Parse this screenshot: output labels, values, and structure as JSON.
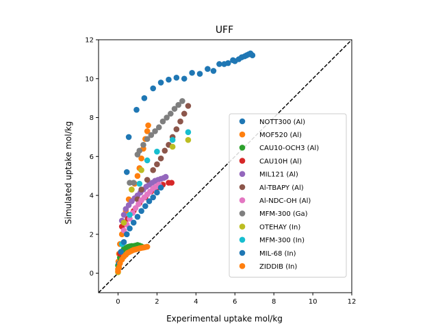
{
  "chart_data": {
    "type": "scatter",
    "title": "UFF",
    "xlabel": "Experimental uptake mol/kg",
    "ylabel": "Simulated uptake mol/kg",
    "xlim": [
      -1,
      12
    ],
    "ylim": [
      -1,
      12
    ],
    "xticks": [
      "0",
      "2",
      "4",
      "6",
      "8",
      "10",
      "12"
    ],
    "yticks": [
      "0",
      "2",
      "4",
      "6",
      "8",
      "10",
      "12"
    ],
    "xtick_values": [
      0,
      2,
      4,
      6,
      8,
      10,
      12
    ],
    "ytick_values": [
      0,
      2,
      4,
      6,
      8,
      10,
      12
    ],
    "grid": false,
    "legend_position": "center-right",
    "reference_line": {
      "style": "dashed",
      "color": "#000000",
      "from": [
        -1,
        -1
      ],
      "to": [
        12,
        12
      ]
    },
    "series": [
      {
        "name": "NOTT300 (Al)",
        "color": "#1f77b4",
        "points": [
          [
            0.55,
            7.0
          ],
          [
            0.95,
            8.4
          ],
          [
            1.35,
            9.0
          ],
          [
            1.8,
            9.5
          ],
          [
            2.2,
            9.8
          ],
          [
            2.6,
            9.95
          ],
          [
            3.0,
            10.05
          ],
          [
            3.4,
            10.0
          ],
          [
            3.8,
            10.3
          ],
          [
            4.2,
            10.25
          ],
          [
            4.6,
            10.5
          ],
          [
            4.9,
            10.4
          ],
          [
            5.2,
            10.75
          ],
          [
            5.45,
            10.75
          ],
          [
            5.65,
            10.8
          ],
          [
            5.9,
            10.95
          ],
          [
            6.0,
            10.9
          ],
          [
            6.2,
            11.0
          ],
          [
            6.35,
            11.1
          ],
          [
            6.5,
            11.15
          ],
          [
            6.6,
            11.2
          ],
          [
            6.7,
            11.25
          ],
          [
            6.8,
            11.3
          ],
          [
            6.9,
            11.2
          ]
        ]
      },
      {
        "name": "MOF520 (Al)",
        "color": "#ff7f0e",
        "points": [
          [
            0.0,
            0.2
          ],
          [
            0.02,
            0.6
          ],
          [
            0.05,
            1.0
          ],
          [
            0.1,
            1.5
          ],
          [
            0.2,
            2.0
          ],
          [
            0.3,
            2.6
          ],
          [
            0.4,
            3.2
          ],
          [
            0.55,
            3.8
          ],
          [
            0.7,
            4.3
          ],
          [
            0.85,
            4.6
          ],
          [
            1.0,
            5.0
          ],
          [
            1.1,
            5.4
          ],
          [
            1.2,
            5.9
          ],
          [
            1.3,
            6.4
          ],
          [
            1.4,
            6.9
          ],
          [
            1.5,
            7.3
          ],
          [
            1.55,
            7.6
          ]
        ]
      },
      {
        "name": "CAU10-OCH3 (Al)",
        "color": "#2ca02c",
        "points": [
          [
            0.0,
            0.4
          ],
          [
            0.1,
            0.8
          ],
          [
            0.2,
            1.1
          ],
          [
            0.3,
            1.25
          ],
          [
            0.4,
            1.3
          ],
          [
            0.5,
            1.35
          ],
          [
            0.6,
            1.38
          ],
          [
            0.7,
            1.4
          ],
          [
            0.8,
            1.4
          ],
          [
            0.9,
            1.42
          ],
          [
            1.0,
            1.45
          ],
          [
            1.1,
            1.42
          ],
          [
            1.2,
            1.38
          ]
        ]
      },
      {
        "name": "CAU10H (Al)",
        "color": "#d62728",
        "points": [
          [
            0.1,
            1.0
          ],
          [
            0.2,
            2.4
          ],
          [
            0.5,
            2.8
          ],
          [
            0.8,
            3.2
          ],
          [
            1.1,
            3.6
          ],
          [
            1.4,
            3.9
          ],
          [
            1.7,
            4.2
          ],
          [
            2.0,
            4.4
          ],
          [
            2.3,
            4.55
          ],
          [
            2.6,
            4.65
          ],
          [
            2.75,
            4.65
          ]
        ]
      },
      {
        "name": "MIL121 (Al)",
        "color": "#9467bd",
        "points": [
          [
            0.2,
            2.7
          ],
          [
            0.3,
            3.0
          ],
          [
            0.4,
            3.3
          ],
          [
            0.55,
            3.5
          ],
          [
            0.7,
            3.7
          ],
          [
            0.85,
            3.85
          ],
          [
            1.0,
            4.0
          ],
          [
            1.15,
            4.15
          ],
          [
            1.3,
            4.3
          ],
          [
            1.45,
            4.45
          ],
          [
            1.6,
            4.55
          ],
          [
            1.75,
            4.65
          ],
          [
            1.9,
            4.75
          ],
          [
            2.05,
            4.8
          ],
          [
            2.2,
            4.85
          ],
          [
            2.35,
            4.9
          ],
          [
            2.45,
            4.95
          ]
        ]
      },
      {
        "name": "Al-TBAPY (Al)",
        "color": "#8c564b",
        "points": [
          [
            1.0,
            3.8
          ],
          [
            1.2,
            4.3
          ],
          [
            1.5,
            4.8
          ],
          [
            1.8,
            5.3
          ],
          [
            2.0,
            5.6
          ],
          [
            2.2,
            5.9
          ],
          [
            2.4,
            6.3
          ],
          [
            2.6,
            6.6
          ],
          [
            2.8,
            7.0
          ],
          [
            3.0,
            7.4
          ],
          [
            3.2,
            7.8
          ],
          [
            3.4,
            8.2
          ],
          [
            3.6,
            8.6
          ]
        ]
      },
      {
        "name": "Al-NDC-OH (Al)",
        "color": "#e377c2",
        "points": [
          [
            0.3,
            2.2
          ],
          [
            0.45,
            2.5
          ],
          [
            0.6,
            2.8
          ],
          [
            0.75,
            3.1
          ],
          [
            0.9,
            3.35
          ],
          [
            1.05,
            3.55
          ],
          [
            1.2,
            3.75
          ],
          [
            1.35,
            3.9
          ],
          [
            1.5,
            4.05
          ],
          [
            1.65,
            4.2
          ],
          [
            1.8,
            4.35
          ],
          [
            1.95,
            4.45
          ],
          [
            2.1,
            4.55
          ]
        ]
      },
      {
        "name": "MFM-300 (Ga)",
        "color": "#7f7f7f",
        "points": [
          [
            0.6,
            4.65
          ],
          [
            0.8,
            4.65
          ],
          [
            1.0,
            6.1
          ],
          [
            1.1,
            6.3
          ],
          [
            1.3,
            6.6
          ],
          [
            1.5,
            6.9
          ],
          [
            1.7,
            7.1
          ],
          [
            1.9,
            7.3
          ],
          [
            2.1,
            7.5
          ],
          [
            2.3,
            7.8
          ],
          [
            2.5,
            8.0
          ],
          [
            2.7,
            8.2
          ],
          [
            2.9,
            8.45
          ],
          [
            3.1,
            8.65
          ],
          [
            3.3,
            8.85
          ]
        ]
      },
      {
        "name": "OTEHAY (In)",
        "color": "#bcbd22",
        "points": [
          [
            0.0,
            0.05
          ],
          [
            0.3,
            2.6
          ],
          [
            0.7,
            4.3
          ],
          [
            1.2,
            5.3
          ],
          [
            2.8,
            6.5
          ],
          [
            3.6,
            6.85
          ]
        ]
      },
      {
        "name": "MFM-300 (In)",
        "color": "#17becf",
        "points": [
          [
            0.2,
            1.5
          ],
          [
            0.6,
            3.0
          ],
          [
            1.1,
            4.6
          ],
          [
            1.5,
            5.8
          ],
          [
            2.0,
            6.25
          ],
          [
            2.8,
            6.85
          ],
          [
            3.6,
            7.25
          ]
        ]
      },
      {
        "name": "MIL-68 (In)",
        "color": "#1f77b4",
        "points": [
          [
            0.05,
            0.5
          ],
          [
            0.15,
            1.1
          ],
          [
            0.3,
            1.6
          ],
          [
            0.45,
            2.0
          ],
          [
            0.6,
            2.3
          ],
          [
            0.8,
            2.6
          ],
          [
            1.0,
            2.9
          ],
          [
            1.2,
            3.2
          ],
          [
            1.4,
            3.45
          ],
          [
            1.6,
            3.7
          ],
          [
            1.8,
            3.9
          ],
          [
            2.0,
            4.15
          ],
          [
            2.2,
            4.4
          ],
          [
            0.45,
            5.2
          ]
        ]
      },
      {
        "name": "ZIDDIB (In)",
        "color": "#ff7f0e",
        "points": [
          [
            0.0,
            0.1
          ],
          [
            0.05,
            0.3
          ],
          [
            0.1,
            0.5
          ],
          [
            0.2,
            0.7
          ],
          [
            0.3,
            0.85
          ],
          [
            0.4,
            0.95
          ],
          [
            0.5,
            1.05
          ],
          [
            0.6,
            1.1
          ],
          [
            0.7,
            1.15
          ],
          [
            0.8,
            1.2
          ],
          [
            0.9,
            1.22
          ],
          [
            1.0,
            1.25
          ],
          [
            1.1,
            1.28
          ],
          [
            1.2,
            1.3
          ],
          [
            1.3,
            1.32
          ],
          [
            1.4,
            1.34
          ],
          [
            1.5,
            1.36
          ]
        ]
      }
    ]
  }
}
